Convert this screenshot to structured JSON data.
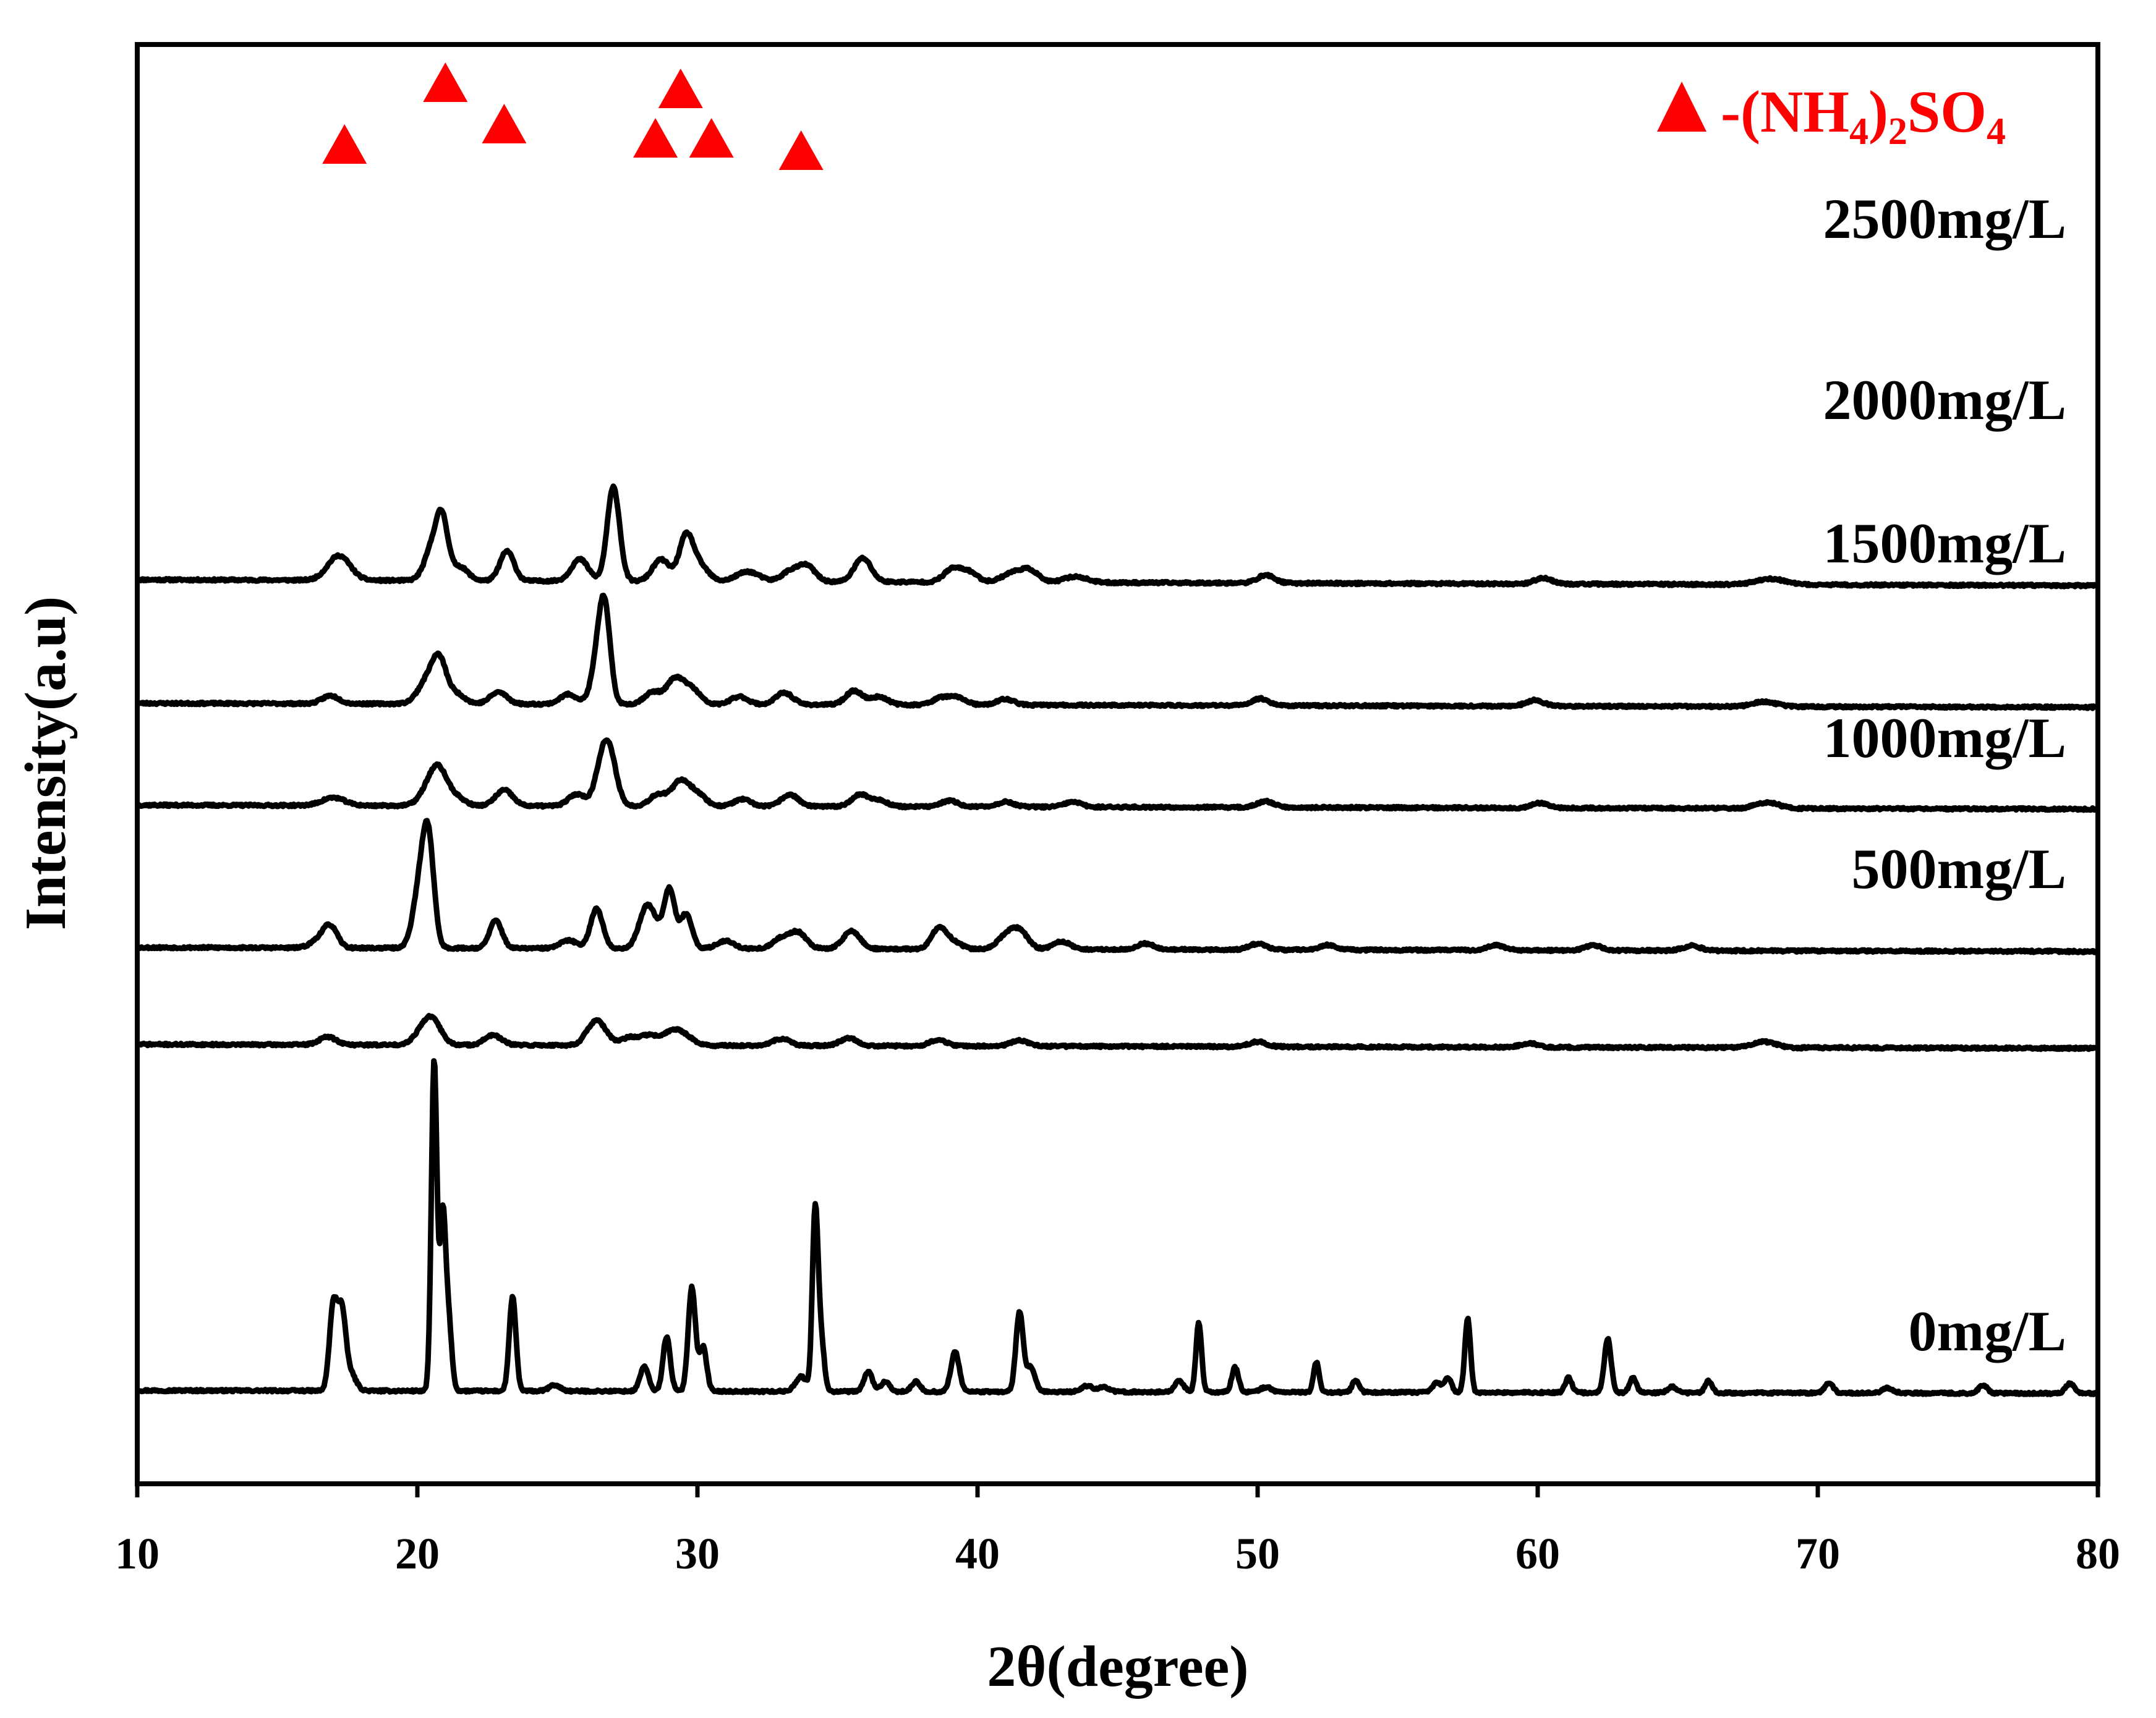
{
  "chart_data": {
    "type": "line",
    "title": "",
    "xlabel": "2θ(degree)",
    "ylabel": "Intensity(a.u)",
    "xlim": [
      10,
      80
    ],
    "xticks": [
      10,
      20,
      30,
      40,
      50,
      60,
      70,
      80
    ],
    "y_units": "arbitrary (stacked, offset patterns)",
    "grid": false,
    "colors": {
      "trace": "#000000",
      "marker": "#ff0000"
    },
    "legend": {
      "position": "top-right",
      "symbol": "triangle",
      "text": "-(NH4)2SO4",
      "text_parts": [
        "-(NH",
        "4",
        ")",
        "2",
        "SO",
        "4"
      ]
    },
    "peak_markers": {
      "symbol": "triangle",
      "series": "2500mg/L",
      "x": [
        17.4,
        21.0,
        23.1,
        28.5,
        29.4,
        30.5,
        33.7
      ]
    },
    "series": [
      {
        "name": "2500mg/L",
        "offset": 820,
        "noise_seed": 11,
        "baseline": {
          "start": 0,
          "end": -6
        },
        "peaks": [
          [
            17.2,
            25,
            0.4
          ],
          [
            20.6,
            38,
            0.3
          ],
          [
            20.9,
            45,
            0.2
          ],
          [
            21.5,
            14,
            0.3
          ],
          [
            23.2,
            30,
            0.25
          ],
          [
            25.8,
            22,
            0.3
          ],
          [
            27.0,
            95,
            0.22
          ],
          [
            28.7,
            22,
            0.3
          ],
          [
            29.6,
            45,
            0.25
          ],
          [
            30.1,
            15,
            0.3
          ],
          [
            31.8,
            10,
            0.4
          ],
          [
            33.3,
            10,
            0.3
          ],
          [
            33.9,
            16,
            0.3
          ],
          [
            35.9,
            24,
            0.3
          ],
          [
            39.1,
            13,
            0.3
          ],
          [
            39.7,
            10,
            0.3
          ],
          [
            41.3,
            10,
            0.4
          ],
          [
            41.9,
            10,
            0.3
          ],
          [
            43.5,
            6,
            0.4
          ],
          [
            50.3,
            8,
            0.3
          ],
          [
            60.2,
            6,
            0.3
          ],
          [
            68.3,
            6,
            0.5
          ]
        ]
      },
      {
        "name": "2000mg/L",
        "offset": 695,
        "noise_seed": 23,
        "baseline": {
          "start": 0,
          "end": -4
        },
        "peaks": [
          [
            16.9,
            8,
            0.3
          ],
          [
            20.4,
            25,
            0.35
          ],
          [
            20.8,
            35,
            0.25
          ],
          [
            21.4,
            10,
            0.3
          ],
          [
            22.9,
            12,
            0.3
          ],
          [
            25.4,
            10,
            0.3
          ],
          [
            26.5,
            50,
            0.25
          ],
          [
            26.7,
            70,
            0.2
          ],
          [
            28.4,
            12,
            0.3
          ],
          [
            29.2,
            25,
            0.3
          ],
          [
            29.8,
            15,
            0.3
          ],
          [
            31.5,
            8,
            0.3
          ],
          [
            33.1,
            12,
            0.3
          ],
          [
            35.6,
            14,
            0.3
          ],
          [
            36.5,
            8,
            0.3
          ],
          [
            38.7,
            7,
            0.3
          ],
          [
            39.3,
            7,
            0.3
          ],
          [
            41.0,
            6,
            0.3
          ],
          [
            50.1,
            7,
            0.3
          ],
          [
            59.9,
            6,
            0.3
          ],
          [
            68.1,
            5,
            0.4
          ]
        ]
      },
      {
        "name": "1500mg/L",
        "offset": 592,
        "noise_seed": 37,
        "baseline": {
          "start": 0,
          "end": -4
        },
        "peaks": [
          [
            17.0,
            8,
            0.4
          ],
          [
            20.5,
            20,
            0.35
          ],
          [
            20.8,
            25,
            0.3
          ],
          [
            21.4,
            8,
            0.3
          ],
          [
            23.1,
            16,
            0.3
          ],
          [
            25.7,
            12,
            0.3
          ],
          [
            26.6,
            40,
            0.25
          ],
          [
            26.9,
            40,
            0.25
          ],
          [
            28.6,
            12,
            0.3
          ],
          [
            29.4,
            25,
            0.3
          ],
          [
            30.0,
            12,
            0.3
          ],
          [
            31.6,
            7,
            0.3
          ],
          [
            33.3,
            12,
            0.3
          ],
          [
            35.8,
            12,
            0.3
          ],
          [
            36.5,
            6,
            0.3
          ],
          [
            39.0,
            6,
            0.3
          ],
          [
            41.0,
            5,
            0.3
          ],
          [
            43.4,
            5,
            0.3
          ],
          [
            50.3,
            6,
            0.3
          ],
          [
            60.1,
            5,
            0.3
          ],
          [
            68.2,
            6,
            0.4
          ]
        ]
      },
      {
        "name": "1000mg/L",
        "offset": 448,
        "noise_seed": 53,
        "baseline": {
          "start": 0,
          "end": -4
        },
        "peaks": [
          [
            16.5,
            8,
            0.3
          ],
          [
            16.9,
            20,
            0.25
          ],
          [
            20.1,
            60,
            0.25
          ],
          [
            20.4,
            95,
            0.2
          ],
          [
            22.8,
            28,
            0.22
          ],
          [
            25.4,
            8,
            0.3
          ],
          [
            26.4,
            40,
            0.22
          ],
          [
            28.1,
            28,
            0.25
          ],
          [
            28.4,
            25,
            0.25
          ],
          [
            29.0,
            60,
            0.2
          ],
          [
            29.6,
            35,
            0.2
          ],
          [
            31.0,
            8,
            0.3
          ],
          [
            33.0,
            10,
            0.3
          ],
          [
            33.6,
            16,
            0.3
          ],
          [
            35.5,
            18,
            0.3
          ],
          [
            38.6,
            20,
            0.25
          ],
          [
            39.1,
            8,
            0.3
          ],
          [
            41.0,
            12,
            0.3
          ],
          [
            41.5,
            18,
            0.3
          ],
          [
            43.0,
            8,
            0.3
          ],
          [
            46.0,
            6,
            0.3
          ],
          [
            50.0,
            6,
            0.3
          ],
          [
            52.5,
            5,
            0.3
          ],
          [
            58.5,
            5,
            0.3
          ],
          [
            62.0,
            5,
            0.3
          ],
          [
            65.5,
            5,
            0.3
          ]
        ]
      },
      {
        "name": "500mg/L",
        "offset": 350,
        "noise_seed": 71,
        "baseline": {
          "start": 0,
          "end": -4
        },
        "peaks": [
          [
            16.8,
            8,
            0.3
          ],
          [
            20.3,
            18,
            0.35
          ],
          [
            20.6,
            14,
            0.3
          ],
          [
            22.7,
            10,
            0.3
          ],
          [
            26.3,
            18,
            0.3
          ],
          [
            26.6,
            10,
            0.3
          ],
          [
            27.6,
            8,
            0.3
          ],
          [
            28.3,
            10,
            0.3
          ],
          [
            29.1,
            14,
            0.3
          ],
          [
            29.6,
            8,
            0.3
          ],
          [
            33.0,
            7,
            0.3
          ],
          [
            35.4,
            8,
            0.3
          ],
          [
            38.6,
            6,
            0.3
          ],
          [
            41.5,
            6,
            0.3
          ],
          [
            50.0,
            5,
            0.3
          ],
          [
            59.7,
            4,
            0.3
          ],
          [
            68.1,
            6,
            0.4
          ]
        ]
      },
      {
        "name": "0mg/L",
        "offset": 0,
        "noise_seed": 97,
        "baseline": {
          "start": 0,
          "end": -3
        },
        "peaks": [
          [
            17.0,
            85,
            0.14
          ],
          [
            17.3,
            75,
            0.14
          ],
          [
            17.6,
            18,
            0.2
          ],
          [
            20.6,
            335,
            0.1
          ],
          [
            20.9,
            165,
            0.1
          ],
          [
            21.1,
            75,
            0.12
          ],
          [
            23.4,
            95,
            0.12
          ],
          [
            24.9,
            6,
            0.2
          ],
          [
            28.1,
            25,
            0.15
          ],
          [
            28.9,
            55,
            0.13
          ],
          [
            29.8,
            105,
            0.13
          ],
          [
            30.2,
            45,
            0.13
          ],
          [
            33.7,
            15,
            0.2
          ],
          [
            34.2,
            175,
            0.1
          ],
          [
            34.4,
            55,
            0.12
          ],
          [
            36.1,
            20,
            0.15
          ],
          [
            36.7,
            10,
            0.15
          ],
          [
            37.8,
            10,
            0.15
          ],
          [
            39.2,
            40,
            0.15
          ],
          [
            41.5,
            80,
            0.13
          ],
          [
            41.9,
            25,
            0.15
          ],
          [
            43.9,
            6,
            0.2
          ],
          [
            44.5,
            5,
            0.2
          ],
          [
            47.2,
            12,
            0.15
          ],
          [
            47.9,
            70,
            0.1
          ],
          [
            49.2,
            25,
            0.12
          ],
          [
            50.3,
            5,
            0.2
          ],
          [
            52.1,
            30,
            0.1
          ],
          [
            53.5,
            12,
            0.12
          ],
          [
            56.4,
            10,
            0.15
          ],
          [
            56.8,
            15,
            0.12
          ],
          [
            57.5,
            75,
            0.1
          ],
          [
            61.1,
            15,
            0.12
          ],
          [
            62.5,
            55,
            0.12
          ],
          [
            63.4,
            15,
            0.12
          ],
          [
            64.8,
            6,
            0.15
          ],
          [
            66.1,
            12,
            0.12
          ],
          [
            70.4,
            10,
            0.15
          ],
          [
            72.5,
            5,
            0.2
          ],
          [
            75.9,
            8,
            0.15
          ],
          [
            79.0,
            10,
            0.15
          ]
        ]
      }
    ]
  }
}
